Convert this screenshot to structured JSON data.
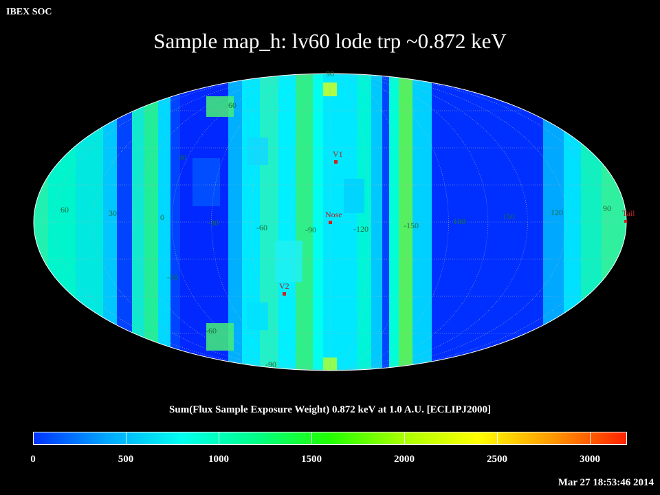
{
  "header": {
    "org": "IBEX SOC",
    "title": "Sample map_h: lv60 lode trp ~0.872 keV"
  },
  "map": {
    "projection": "aitoff",
    "grid_color": "#b0b0b0",
    "grid_label_color": "#1a6e3c",
    "lon_labels": [
      "60",
      "30",
      "0",
      "-30",
      "-60",
      "-90",
      "-120",
      "-150",
      "180",
      "150",
      "120",
      "90"
    ],
    "lat_labels": [
      "90",
      "60",
      "30",
      "-30",
      "-60",
      "-90"
    ],
    "markers": [
      {
        "label": "V1",
        "color": "#b52020"
      },
      {
        "label": "Nose",
        "color": "#b52020"
      },
      {
        "label": "V2",
        "color": "#b52020"
      },
      {
        "label": "Tail",
        "color": "#b52020"
      }
    ]
  },
  "colorbar": {
    "title": "Sum(Flux Sample Exposure Weight)  0.872 keV at 1.0 A.U. [ECLIPJ2000]",
    "min": 0,
    "max": 3200,
    "tick_labels": [
      "0",
      "500",
      "1000",
      "1500",
      "2000",
      "2500",
      "3000"
    ],
    "gradient": [
      "#0033ff",
      "#00a8ff",
      "#00ffee",
      "#00ff88",
      "#22ff00",
      "#aaff00",
      "#ffff00",
      "#ff9900",
      "#ff2200"
    ]
  },
  "footer": {
    "timestamp": "Mar 27 18:53:46 2014"
  }
}
